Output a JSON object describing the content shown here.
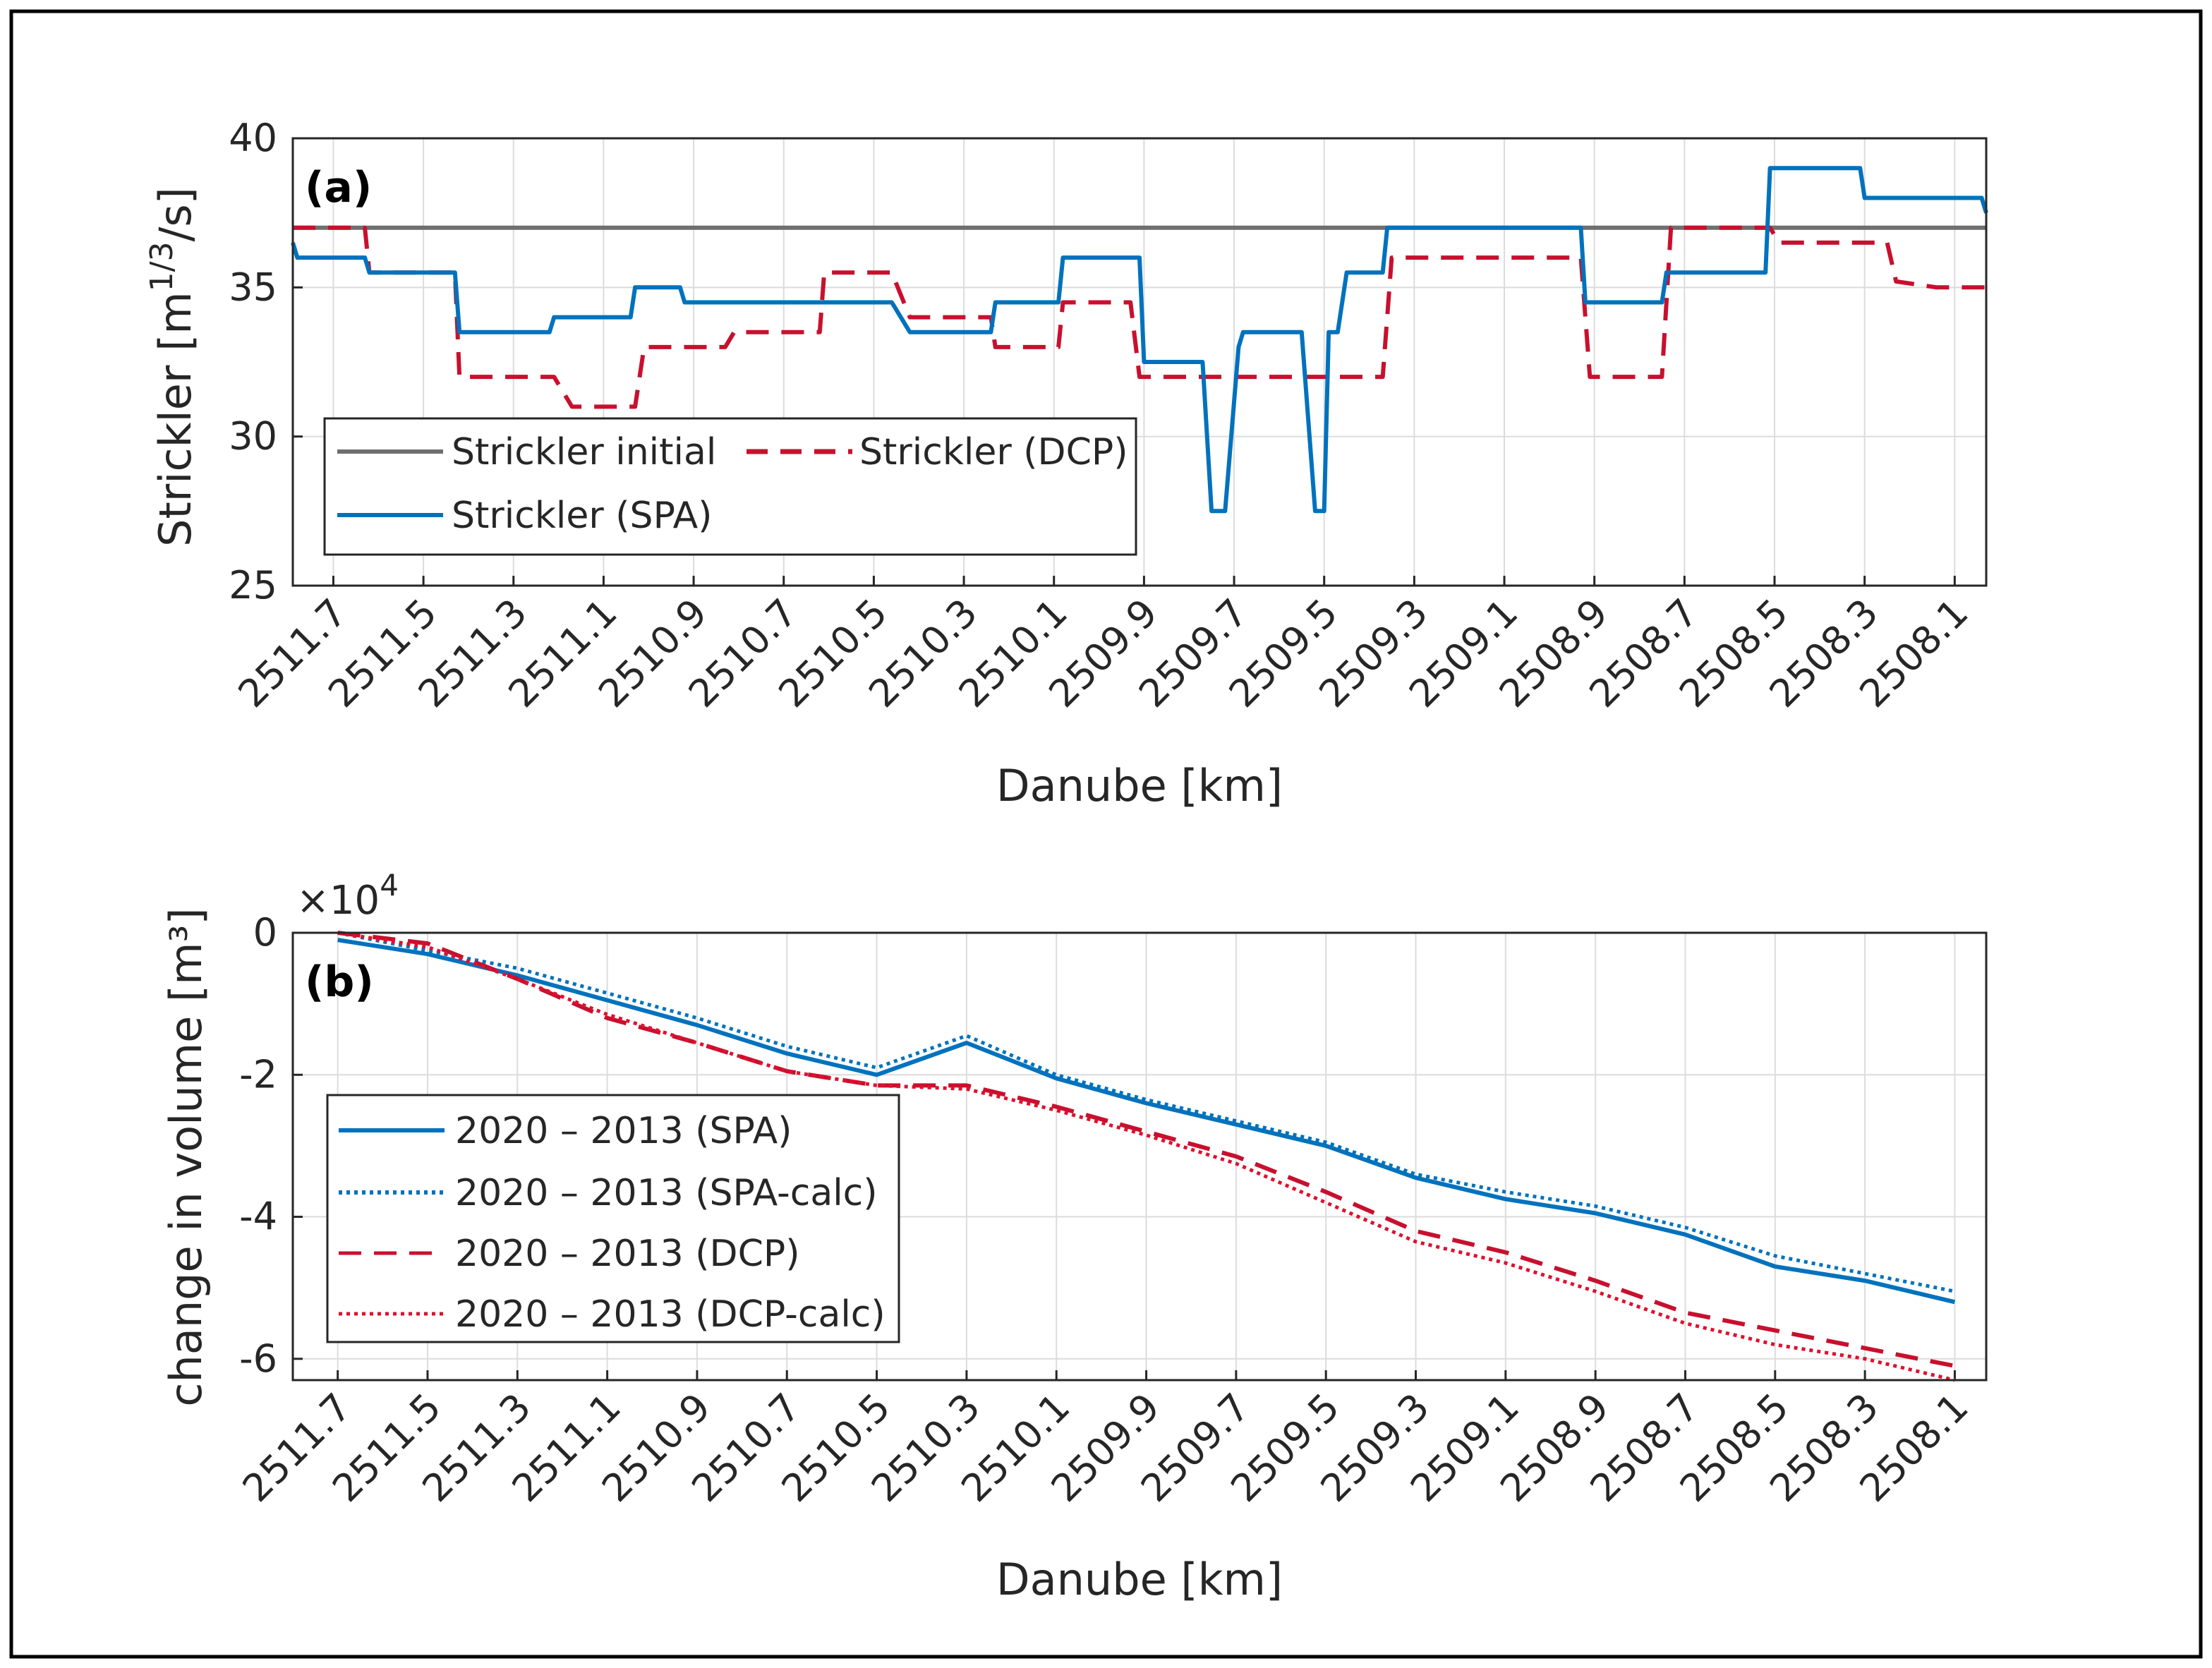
{
  "colors": {
    "gray": "#6f6f6f",
    "blue": "#0072bd",
    "red": "#c8102e",
    "crimson": "#e0102e"
  },
  "chart_data": [
    {
      "type": "line",
      "panel_label": "(a)",
      "xlabel": "Danube [km]",
      "ylabel": "Strickler [m^1/3/s]",
      "ylabel_main": "Strickler [m",
      "ylabel_sup": "1/3",
      "ylabel_end": "/s]",
      "xlim": [
        2511.79,
        2508.03
      ],
      "ylim": [
        25,
        40
      ],
      "x_reversed": true,
      "xticks": [
        "2511.7",
        "2511.5",
        "2511.3",
        "2511.1",
        "2510.9",
        "2510.7",
        "2510.5",
        "2510.3",
        "2510.1",
        "2509.9",
        "2509.7",
        "2509.5",
        "2509.3",
        "2509.1",
        "2508.9",
        "2508.7",
        "2508.5",
        "2508.3",
        "2508.1"
      ],
      "yticks": [
        "25",
        "30",
        "35",
        "40"
      ],
      "legend": {
        "position": "lower-left",
        "entries": [
          "Strickler initial",
          "Strickler (DCP)",
          "Strickler (SPA)"
        ]
      },
      "series": [
        {
          "name": "Strickler initial",
          "style": "solid",
          "color_key": "gray",
          "x": [
            2511.79,
            2508.03
          ],
          "y": [
            37,
            37
          ]
        },
        {
          "name": "Strickler (DCP)",
          "style": "dashed",
          "color_key": "red",
          "x": [
            2511.79,
            2511.63,
            2511.62,
            2511.43,
            2511.42,
            2511.23,
            2511.21,
            2511.17,
            2511.03,
            2511.01,
            2510.83,
            2510.81,
            2510.62,
            2510.61,
            2510.48,
            2510.46,
            2510.42,
            2510.24,
            2510.23,
            2510.09,
            2510.08,
            2509.93,
            2509.91,
            2509.73,
            2509.71,
            2509.37,
            2509.35,
            2508.93,
            2508.91,
            2508.75,
            2508.73,
            2508.51,
            2508.49,
            2508.25,
            2508.23,
            2508.14,
            2508.12,
            2508.03
          ],
          "y": [
            37,
            37,
            35.5,
            35.5,
            32,
            32,
            32,
            31,
            31,
            33,
            33,
            33.5,
            33.5,
            35.5,
            35.5,
            35.5,
            34,
            34,
            33,
            33,
            34.5,
            34.5,
            32,
            32,
            32,
            32,
            36,
            36,
            32,
            32,
            37,
            37,
            36.5,
            36.5,
            35.2,
            35,
            35,
            35
          ]
        },
        {
          "name": "Strickler (SPA)",
          "style": "solid",
          "color_key": "blue",
          "x": [
            2511.79,
            2511.78,
            2511.63,
            2511.62,
            2511.43,
            2511.42,
            2511.22,
            2511.21,
            2511.04,
            2511.03,
            2510.93,
            2510.92,
            2510.73,
            2510.72,
            2510.48,
            2510.46,
            2510.42,
            2510.24,
            2510.23,
            2510.09,
            2510.08,
            2509.91,
            2509.9,
            2509.78,
            2509.77,
            2509.75,
            2509.72,
            2509.69,
            2509.68,
            2509.64,
            2509.55,
            2509.52,
            2509.5,
            2509.49,
            2509.47,
            2509.45,
            2509.37,
            2509.36,
            2508.93,
            2508.92,
            2508.75,
            2508.74,
            2508.52,
            2508.51,
            2508.31,
            2508.3,
            2508.04,
            2508.03
          ],
          "y": [
            36.5,
            36,
            36,
            35.5,
            35.5,
            33.5,
            33.5,
            34,
            34,
            35,
            35,
            34.5,
            34.5,
            34.5,
            34.5,
            34.5,
            33.5,
            33.5,
            34.5,
            34.5,
            36,
            36,
            32.5,
            32.5,
            32.5,
            27.5,
            27.5,
            33,
            33.5,
            33.5,
            33.5,
            27.5,
            27.5,
            33.5,
            33.5,
            35.5,
            35.5,
            37,
            37,
            34.5,
            34.5,
            35.5,
            35.5,
            39,
            39,
            38,
            38,
            37.5
          ]
        }
      ]
    },
    {
      "type": "line",
      "panel_label": "(b)",
      "xlabel": "Danube [km]",
      "ylabel": "change in volume [m³]",
      "exponent_label": "×10",
      "exponent_sup": "4",
      "exponent": 4,
      "xlim": [
        2511.8,
        2508.03
      ],
      "ylim": [
        -6.3,
        0
      ],
      "x_reversed": true,
      "xticks": [
        "2511.7",
        "2511.5",
        "2511.3",
        "2511.1",
        "2510.9",
        "2510.7",
        "2510.5",
        "2510.3",
        "2510.1",
        "2509.9",
        "2509.7",
        "2509.5",
        "2509.3",
        "2509.1",
        "2508.9",
        "2508.7",
        "2508.5",
        "2508.3",
        "2508.1"
      ],
      "yticks": [
        "0",
        "-2",
        "-4",
        "-6"
      ],
      "legend": {
        "position": "lower-left",
        "entries": [
          "2020 – 2013 (SPA)",
          "2020 – 2013 (SPA-calc)",
          "2020 – 2013 (DCP)",
          "2020 – 2013 (DCP-calc)"
        ]
      },
      "x": [
        2511.7,
        2511.5,
        2511.3,
        2511.1,
        2510.9,
        2510.7,
        2510.5,
        2510.3,
        2510.1,
        2509.9,
        2509.7,
        2509.5,
        2509.3,
        2509.1,
        2508.9,
        2508.7,
        2508.5,
        2508.3,
        2508.1
      ],
      "series": [
        {
          "name": "2020 – 2013 (SPA)",
          "style": "solid",
          "color_key": "blue",
          "values": [
            -0.1,
            -0.3,
            -0.6,
            -0.95,
            -1.3,
            -1.7,
            -2.0,
            -1.55,
            -2.05,
            -2.4,
            -2.7,
            -3.0,
            -3.45,
            -3.75,
            -3.95,
            -4.25,
            -4.7,
            -4.9,
            -5.2
          ]
        },
        {
          "name": "2020 – 2013 (SPA-calc)",
          "style": "dotted",
          "color_key": "blue",
          "values": [
            0,
            -0.25,
            -0.5,
            -0.85,
            -1.2,
            -1.6,
            -1.9,
            -1.45,
            -2.0,
            -2.35,
            -2.65,
            -2.95,
            -3.4,
            -3.65,
            -3.85,
            -4.15,
            -4.55,
            -4.8,
            -5.05
          ]
        },
        {
          "name": "2020 – 2013 (DCP)",
          "style": "dashed",
          "color_key": "red",
          "values": [
            0,
            -0.15,
            -0.65,
            -1.2,
            -1.55,
            -1.95,
            -2.15,
            -2.15,
            -2.45,
            -2.8,
            -3.15,
            -3.65,
            -4.2,
            -4.5,
            -4.9,
            -5.35,
            -5.6,
            -5.85,
            -6.1
          ]
        },
        {
          "name": "2020 – 2013 (DCP-calc)",
          "style": "dotted",
          "color_key": "crimson",
          "values": [
            0,
            -0.2,
            -0.65,
            -1.15,
            -1.55,
            -1.95,
            -2.15,
            -2.2,
            -2.5,
            -2.85,
            -3.25,
            -3.8,
            -4.35,
            -4.65,
            -5.05,
            -5.5,
            -5.8,
            -6.0,
            -6.3
          ]
        }
      ]
    }
  ]
}
